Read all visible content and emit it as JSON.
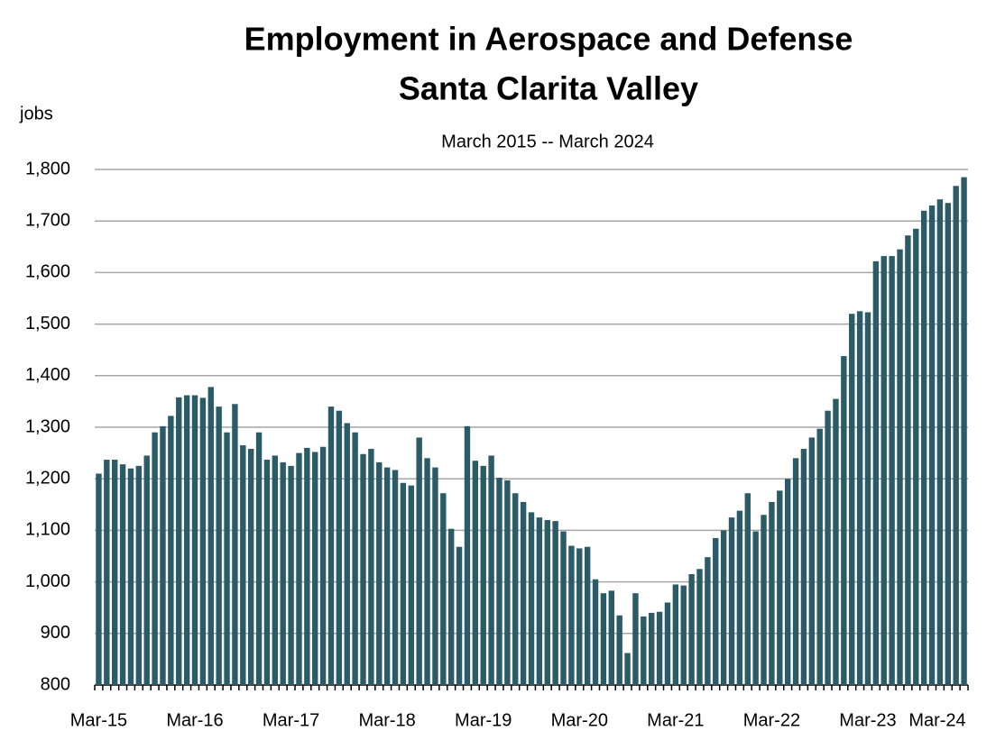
{
  "chart_data": {
    "type": "bar",
    "title": [
      "Employment in Aerospace and Defense",
      "Santa Clarita Valley"
    ],
    "subtitle": "March 2015 -- March 2024",
    "y_label": "jobs",
    "color": "#2a5b66",
    "grid": true,
    "ylim": [
      800,
      1800
    ],
    "yticks": [
      800,
      900,
      {
        "value": 1000,
        "label": "1,000"
      },
      {
        "value": 1100,
        "label": "1,100"
      },
      {
        "value": 1200,
        "label": "1,200"
      },
      {
        "value": 1300,
        "label": "1,300"
      },
      {
        "value": 1400,
        "label": "1,400"
      },
      {
        "value": 1500,
        "label": "1,500"
      },
      {
        "value": 1600,
        "label": "1,600"
      },
      {
        "value": 1700,
        "label": "1,700"
      },
      {
        "value": 1800,
        "label": "1,800"
      }
    ],
    "categories": [
      "Mar-15",
      null,
      null,
      null,
      null,
      null,
      null,
      null,
      null,
      null,
      null,
      null,
      "Mar-16",
      null,
      null,
      null,
      null,
      null,
      null,
      null,
      null,
      null,
      null,
      null,
      "Mar-17",
      null,
      null,
      null,
      null,
      null,
      null,
      null,
      null,
      null,
      null,
      null,
      "Mar-18",
      null,
      null,
      null,
      null,
      null,
      null,
      null,
      null,
      null,
      null,
      null,
      "Mar-19",
      null,
      null,
      null,
      null,
      null,
      null,
      null,
      null,
      null,
      null,
      null,
      "Mar-20",
      null,
      null,
      null,
      null,
      null,
      null,
      null,
      null,
      null,
      null,
      null,
      "Mar-21",
      null,
      null,
      null,
      null,
      null,
      null,
      null,
      null,
      null,
      null,
      null,
      "Mar-22",
      null,
      null,
      null,
      null,
      null,
      null,
      null,
      null,
      null,
      null,
      null,
      "Mar-23",
      null,
      null,
      null,
      null,
      null,
      null,
      null,
      null,
      null,
      null,
      null,
      "Mar-24"
    ],
    "values": [
      1210,
      1237,
      1237,
      1228,
      1220,
      1225,
      1245,
      1290,
      1302,
      1322,
      1358,
      1362,
      1362,
      1357,
      1378,
      1340,
      1290,
      1345,
      1265,
      1258,
      1290,
      1237,
      1245,
      1232,
      1225,
      1250,
      1260,
      1252,
      1262,
      1340,
      1332,
      1308,
      1290,
      1248,
      1258,
      1232,
      1222,
      1217,
      1192,
      1187,
      1280,
      1240,
      1222,
      1172,
      1103,
      1068,
      1302,
      1235,
      1225,
      1245,
      1202,
      1197,
      1172,
      1155,
      1135,
      1125,
      1120,
      1118,
      1098,
      1070,
      1065,
      1068,
      1005,
      978,
      983,
      935,
      862,
      978,
      933,
      940,
      942,
      960,
      995,
      993,
      1015,
      1025,
      1048,
      1085,
      1100,
      1125,
      1138,
      1172,
      1098,
      1130,
      1155,
      1177,
      1200,
      1240,
      1258,
      1280,
      1297,
      1332,
      1355,
      1438,
      1520,
      1525,
      1523,
      1622,
      1632,
      1632,
      1645,
      1672,
      1685,
      1720,
      1730,
      1742,
      1735,
      1768,
      1785
    ]
  }
}
